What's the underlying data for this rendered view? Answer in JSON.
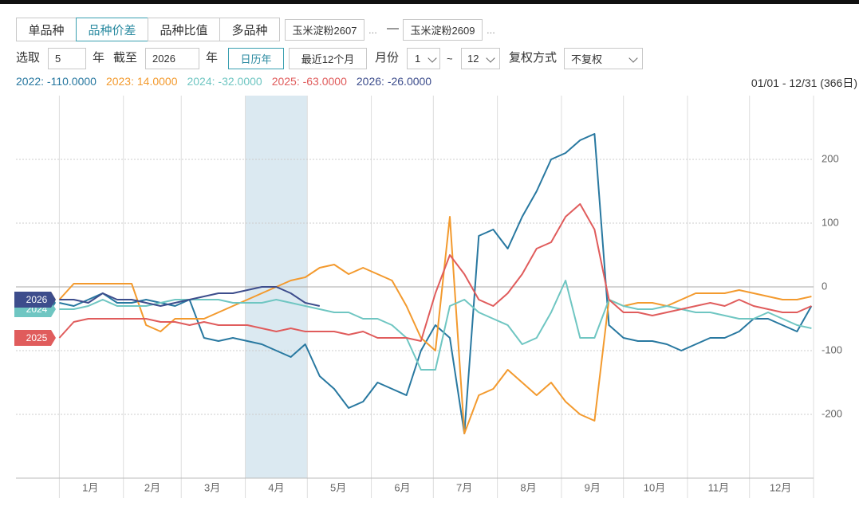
{
  "toolbar": {
    "tabs": [
      "单品种",
      "品种价差",
      "品种比值",
      "多品种"
    ],
    "active_tab": 1,
    "contract1": "玉米淀粉2607",
    "more": "...",
    "dash": "—",
    "contract2": "玉米淀粉2609",
    "select_label": "选取",
    "years": "5",
    "year_unit": "年",
    "until_label": "截至",
    "until_year": "2026",
    "calendar_year": "日历年",
    "recent12": "最近12个月",
    "month_label": "月份",
    "month_from": "1",
    "tilde": "~",
    "month_to": "12",
    "adjust_label": "复权方式",
    "adjust_value": "不复权"
  },
  "chart_data": {
    "type": "line",
    "range_label": "01/01 - 12/31 (366日)",
    "x": [
      1,
      8,
      15,
      22,
      29,
      36,
      43,
      50,
      57,
      64,
      71,
      78,
      85,
      92,
      99,
      106,
      113,
      120,
      127,
      134,
      141,
      148,
      155,
      162,
      169,
      176,
      183,
      190,
      197,
      204,
      211,
      218,
      225,
      232,
      239,
      246,
      253,
      260,
      267,
      274,
      281,
      288,
      295,
      302,
      309,
      316,
      323,
      330,
      337,
      344,
      351,
      358,
      365
    ],
    "xlim": [
      -20,
      366
    ],
    "xticks": [
      {
        "value": 16,
        "label": "1月"
      },
      {
        "value": 46,
        "label": "2月"
      },
      {
        "value": 75,
        "label": "3月"
      },
      {
        "value": 106,
        "label": "4月"
      },
      {
        "value": 136,
        "label": "5月"
      },
      {
        "value": 167,
        "label": "6月"
      },
      {
        "value": 197,
        "label": "7月"
      },
      {
        "value": 228,
        "label": "8月"
      },
      {
        "value": 259,
        "label": "9月"
      },
      {
        "value": 289,
        "label": "10月"
      },
      {
        "value": 320,
        "label": "11月"
      },
      {
        "value": 350,
        "label": "12月"
      }
    ],
    "xgrid": [
      1,
      32,
      60,
      91,
      121,
      152,
      182,
      213,
      244,
      274,
      305,
      335,
      366
    ],
    "highlight": [
      91,
      121
    ],
    "ylim": [
      -300,
      300
    ],
    "yticks": [
      -200,
      -100,
      0,
      100,
      200
    ],
    "grid": true,
    "series": [
      {
        "name": "2022",
        "legend_label": "2022: -110.0000",
        "color": "#2878a0",
        "values": [
          -25,
          -30,
          -20,
          -10,
          -25,
          -25,
          -20,
          -25,
          -30,
          -20,
          -80,
          -85,
          -80,
          -85,
          -90,
          -100,
          -110,
          -90,
          -140,
          -160,
          -190,
          -180,
          -150,
          -160,
          -170,
          -100,
          -60,
          -80,
          -230,
          80,
          90,
          60,
          110,
          150,
          200,
          210,
          230,
          240,
          -60,
          -80,
          -85,
          -85,
          -90,
          -100,
          -90,
          -80,
          -80,
          -70,
          -50,
          -50,
          -60,
          -70,
          -30
        ]
      },
      {
        "name": "2023",
        "legend_label": "2023: 14.0000",
        "color": "#f39a2e",
        "values": [
          -20,
          5,
          5,
          5,
          5,
          5,
          -60,
          -70,
          -50,
          -50,
          -50,
          -40,
          -30,
          -20,
          -10,
          0,
          10,
          15,
          30,
          35,
          20,
          30,
          20,
          10,
          -30,
          -80,
          -100,
          110,
          -230,
          -170,
          -160,
          -130,
          -150,
          -170,
          -150,
          -180,
          -200,
          -210,
          -20,
          -30,
          -25,
          -25,
          -30,
          -20,
          -10,
          -10,
          -10,
          -5,
          -10,
          -15,
          -20,
          -20,
          -15
        ]
      },
      {
        "name": "2024",
        "legend_label": "2024: -32.0000",
        "color": "#6fc6c2",
        "values": [
          -35,
          -35,
          -30,
          -20,
          -30,
          -30,
          -30,
          -25,
          -20,
          -20,
          -20,
          -20,
          -25,
          -25,
          -25,
          -20,
          -25,
          -30,
          -35,
          -40,
          -40,
          -50,
          -50,
          -60,
          -80,
          -130,
          -130,
          -30,
          -20,
          -40,
          -50,
          -60,
          -90,
          -80,
          -40,
          10,
          -80,
          -80,
          -20,
          -30,
          -35,
          -35,
          -30,
          -35,
          -40,
          -40,
          -45,
          -50,
          -50,
          -40,
          -50,
          -60,
          -65
        ]
      },
      {
        "name": "2025",
        "legend_label": "2025: -63.0000",
        "color": "#e05c5c",
        "values": [
          -80,
          -55,
          -50,
          -50,
          -50,
          -50,
          -50,
          -55,
          -55,
          -60,
          -55,
          -60,
          -60,
          -60,
          -65,
          -70,
          -65,
          -70,
          -70,
          -70,
          -75,
          -70,
          -80,
          -80,
          -80,
          -85,
          -10,
          50,
          20,
          -20,
          -30,
          -10,
          20,
          60,
          70,
          110,
          130,
          90,
          -20,
          -40,
          -40,
          -45,
          -40,
          -35,
          -30,
          -25,
          -30,
          -20,
          -30,
          -35,
          -40,
          -40,
          -30
        ]
      },
      {
        "name": "2026",
        "legend_label": "2026: -26.0000",
        "color": "#3d4d8c",
        "values": [
          -20,
          -20,
          -25,
          -10,
          -20,
          -20,
          -25,
          -30,
          -25,
          -20,
          -15,
          -10,
          -10,
          -5,
          0,
          0,
          -10,
          -25,
          -30,
          null,
          null,
          null,
          null,
          null,
          null,
          null,
          null,
          null,
          null,
          null,
          null,
          null,
          null,
          null,
          null,
          null,
          null,
          null,
          null,
          null,
          null,
          null,
          null,
          null,
          null,
          null,
          null,
          null,
          null,
          null,
          null,
          null,
          null
        ]
      }
    ]
  }
}
